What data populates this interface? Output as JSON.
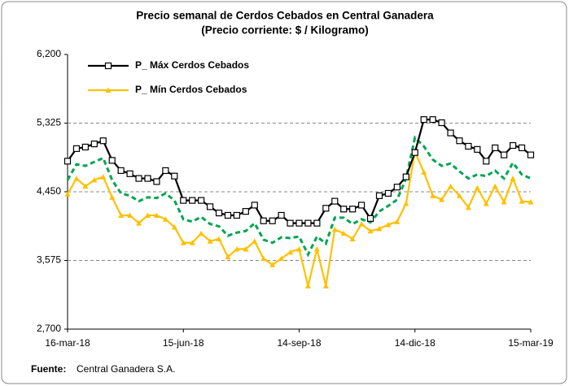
{
  "chart_data": {
    "type": "line",
    "title": "Precio semanal de Cerdos Cebados  en Central Ganadera",
    "subtitle": "(Precio corriente: $ / Kilogramo)",
    "categories": [
      "16-mar-18",
      null,
      null,
      null,
      null,
      null,
      null,
      null,
      null,
      null,
      null,
      null,
      null,
      "15-jun-18",
      null,
      null,
      null,
      null,
      null,
      null,
      null,
      null,
      null,
      null,
      null,
      null,
      "14-sep-18",
      null,
      null,
      null,
      null,
      null,
      null,
      null,
      null,
      null,
      null,
      null,
      null,
      "14-dic-18",
      null,
      null,
      null,
      null,
      null,
      null,
      null,
      null,
      null,
      null,
      null,
      null,
      "15-mar-19"
    ],
    "series": [
      {
        "name": "P_ Máx Cerdos Cebados",
        "color": "#000000",
        "marker": "square",
        "values": [
          4840,
          5000,
          5020,
          5060,
          5100,
          4850,
          4720,
          4680,
          4620,
          4620,
          4580,
          4720,
          4650,
          4340,
          4340,
          4340,
          4260,
          4180,
          4150,
          4150,
          4200,
          4280,
          4080,
          4080,
          4150,
          4050,
          4050,
          4050,
          4050,
          4240,
          4330,
          4230,
          4230,
          4280,
          4110,
          4400,
          4430,
          4510,
          4640,
          4950,
          5370,
          5370,
          5330,
          5200,
          5100,
          5030,
          4990,
          4840,
          5010,
          4920,
          5040,
          5010,
          4920
        ]
      },
      {
        "name": "P_ Mín Cerdos Cebados",
        "color": "#FFC000",
        "marker": "triangle",
        "values": [
          4420,
          4620,
          4520,
          4600,
          4640,
          4380,
          4150,
          4150,
          4050,
          4150,
          4150,
          4100,
          4000,
          3800,
          3800,
          3920,
          3820,
          3850,
          3620,
          3720,
          3720,
          3820,
          3600,
          3520,
          3600,
          3680,
          3720,
          3250,
          3720,
          3250,
          3970,
          3920,
          3850,
          4040,
          3950,
          3980,
          4030,
          4070,
          4300,
          4960,
          4700,
          4400,
          4350,
          4520,
          4400,
          4250,
          4500,
          4300,
          4520,
          4320,
          4620,
          4330,
          4320
        ]
      },
      {
        "color": "#00A650",
        "dashed": true,
        "values": [
          4600,
          4800,
          4780,
          4830,
          4880,
          4600,
          4430,
          4400,
          4330,
          4380,
          4370,
          4430,
          4340,
          4100,
          4070,
          4130,
          4040,
          4010,
          3890,
          3930,
          3950,
          4050,
          3840,
          3800,
          3870,
          3860,
          3880,
          3650,
          3880,
          3790,
          4120,
          4120,
          4040,
          4100,
          4060,
          4200,
          4270,
          4350,
          4620,
          5140,
          5030,
          4860,
          4780,
          4810,
          4710,
          4620,
          4670,
          4650,
          4720,
          4620,
          4820,
          4670,
          4620
        ]
      }
    ],
    "ylim": [
      2700,
      6200
    ],
    "yticks": [
      {
        "value": 2700,
        "label": "2,700"
      },
      {
        "value": 3575,
        "label": "3,575"
      },
      {
        "value": 4450,
        "label": "4,450"
      },
      {
        "value": 5325,
        "label": "5,325"
      },
      {
        "value": 6200,
        "label": "6,200"
      }
    ],
    "grid": true,
    "legend": "upper left",
    "source_label": "Fuente:",
    "source": "Central Ganadera S.A."
  }
}
